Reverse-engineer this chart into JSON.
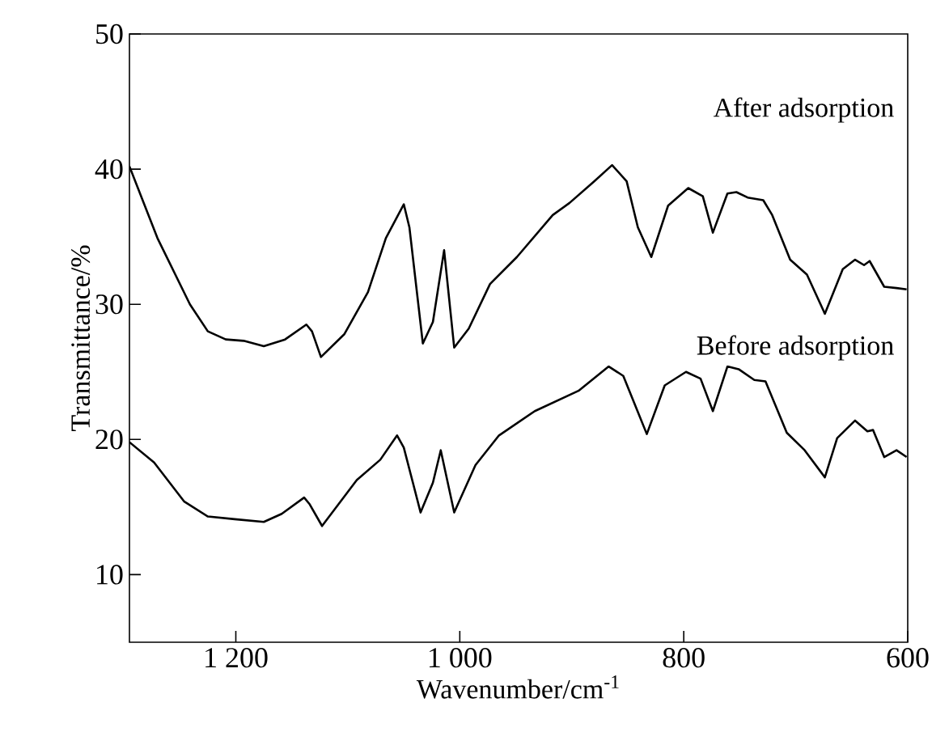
{
  "chart_data": {
    "type": "line",
    "xlabel": "Wavenumber/cm$^{-1}$",
    "ylabel": "Transmittance/%",
    "xlim": [
      1295,
      600
    ],
    "ylim": [
      5,
      50
    ],
    "xticks": [
      {
        "value": 1200,
        "label": "1 200"
      },
      {
        "value": 1000,
        "label": "1 000"
      },
      800,
      600
    ],
    "yticks": [
      10,
      20,
      30,
      40,
      50
    ],
    "series": [
      {
        "name": "After adsorption",
        "color": "#000000",
        "x": [
          1295,
          1270,
          1241,
          1225,
          1209,
          1193,
          1175,
          1156,
          1137,
          1132,
          1124,
          1103,
          1082,
          1066,
          1050,
          1045,
          1033,
          1024,
          1014,
          1005,
          992,
          973,
          949,
          917,
          902,
          880,
          864,
          851,
          841,
          829,
          814,
          796,
          783,
          774,
          761,
          753,
          743,
          729,
          721,
          705,
          690,
          674,
          658,
          647,
          639,
          634,
          621,
          610,
          601
        ],
        "values": [
          40.2,
          34.9,
          30.0,
          28.0,
          27.4,
          27.3,
          26.9,
          27.4,
          28.5,
          28.0,
          26.1,
          27.8,
          30.9,
          34.9,
          37.4,
          35.7,
          27.1,
          28.7,
          34.0,
          26.8,
          28.2,
          31.5,
          33.5,
          36.6,
          37.5,
          39.1,
          40.3,
          39.1,
          35.7,
          33.5,
          37.3,
          38.6,
          38.0,
          35.3,
          38.2,
          38.3,
          37.9,
          37.7,
          36.6,
          33.3,
          32.2,
          29.3,
          32.6,
          33.3,
          32.9,
          33.2,
          31.3,
          31.2,
          31.1
        ]
      },
      {
        "name": "Before adsorption",
        "color": "#000000",
        "x": [
          1295,
          1273,
          1246,
          1225,
          1201,
          1175,
          1159,
          1139,
          1134,
          1123,
          1092,
          1071,
          1056,
          1050,
          1035,
          1024,
          1017,
          1005,
          986,
          965,
          933,
          894,
          867,
          854,
          833,
          817,
          798,
          785,
          774,
          761,
          751,
          737,
          727,
          708,
          692,
          674,
          663,
          647,
          636,
          631,
          621,
          610,
          601
        ],
        "values": [
          19.8,
          18.3,
          15.4,
          14.3,
          14.1,
          13.9,
          14.5,
          15.7,
          15.2,
          13.6,
          17.0,
          18.5,
          20.3,
          19.4,
          14.6,
          16.8,
          19.2,
          14.6,
          18.1,
          20.3,
          22.1,
          23.6,
          25.4,
          24.7,
          20.4,
          24.0,
          25.0,
          24.5,
          22.1,
          25.4,
          25.2,
          24.4,
          24.3,
          20.5,
          19.2,
          17.2,
          20.1,
          21.4,
          20.6,
          20.7,
          18.7,
          19.2,
          18.7
        ]
      }
    ]
  }
}
